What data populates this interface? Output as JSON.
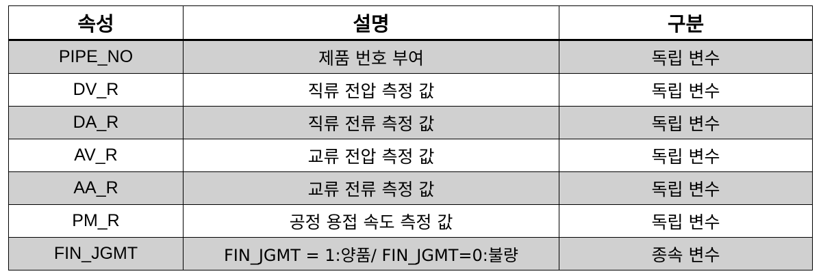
{
  "table": {
    "headers": {
      "attribute": "속성",
      "description": "설명",
      "category": "구분"
    },
    "rows": [
      {
        "attribute": "PIPE_NO",
        "description": "제품 번호 부여",
        "category": "독립 변수"
      },
      {
        "attribute": "DV_R",
        "description": "직류 전압 측정 값",
        "category": "독립 변수"
      },
      {
        "attribute": "DA_R",
        "description": "직류 전류 측정 값",
        "category": "독립 변수"
      },
      {
        "attribute": "AV_R",
        "description": "교류 전압 측정 값",
        "category": "독립 변수"
      },
      {
        "attribute": "AA_R",
        "description": "교류 전류 측정 값",
        "category": "독립 변수"
      },
      {
        "attribute": "PM_R",
        "description": "공정 용접 속도 측정 값",
        "category": "독립 변수"
      },
      {
        "attribute": "FIN_JGMT",
        "description": "FIN_JGMT = 1:양품/ FIN_JGMT=0:불량",
        "category": "종속 변수"
      }
    ],
    "colors": {
      "shaded_row": "#d0d0d0",
      "plain_row": "#ffffff",
      "border": "#000000"
    }
  }
}
